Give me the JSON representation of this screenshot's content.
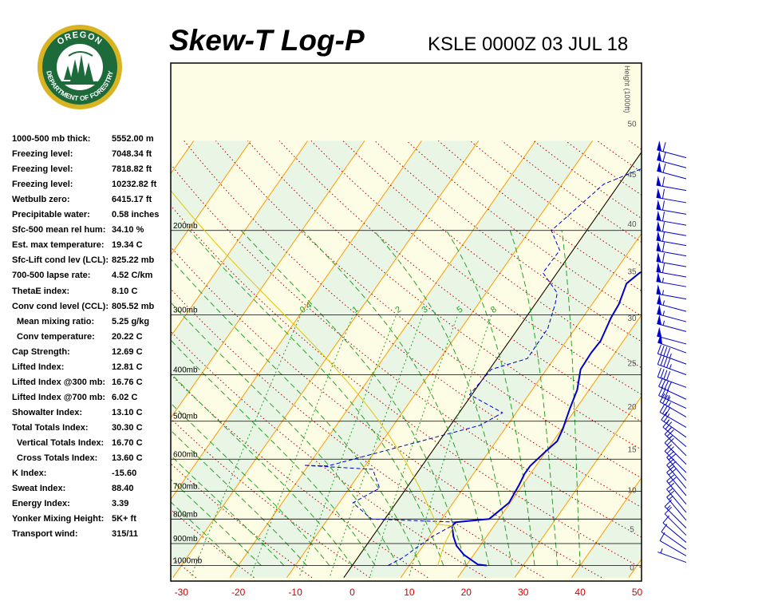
{
  "header": {
    "title": "Skew-T Log-P",
    "station": "KSLE 0000Z 03 JUL 18"
  },
  "logo": {
    "top_text": "OREGON",
    "bottom_text": "DEPARTMENT OF FORESTRY",
    "colors": {
      "ring": "#1d6b3a",
      "outer": "#d8b422",
      "inner": "#ffffff",
      "trees": "#1d6b3a"
    }
  },
  "indices": [
    {
      "label": "1000-500 mb thick:",
      "value": "5552.00 m",
      "indent": false
    },
    {
      "label": "Freezing level:",
      "value": "7048.34 ft",
      "indent": false
    },
    {
      "label": "Freezing level:",
      "value": "7818.82 ft",
      "indent": false
    },
    {
      "label": "Freezing level:",
      "value": "10232.82 ft",
      "indent": false
    },
    {
      "label": "Wetbulb zero:",
      "value": "6415.17 ft",
      "indent": false
    },
    {
      "label": "Precipitable water:",
      "value": "0.58 inches",
      "indent": false
    },
    {
      "label": "Sfc-500 mean rel hum:",
      "value": "34.10 %",
      "indent": false
    },
    {
      "label": "Est. max temperature:",
      "value": "19.34 C",
      "indent": false
    },
    {
      "label": "Sfc-Lift cond lev (LCL):",
      "value": "825.22 mb",
      "indent": false
    },
    {
      "label": "700-500 lapse rate:",
      "value": "4.52 C/km",
      "indent": false
    },
    {
      "label": "ThetaE index:",
      "value": "8.10 C",
      "indent": false
    },
    {
      "label": "Conv cond level (CCL):",
      "value": "805.52 mb",
      "indent": false
    },
    {
      "label": "Mean mixing ratio:",
      "value": "5.25 g/kg",
      "indent": true
    },
    {
      "label": "Conv temperature:",
      "value": "20.22 C",
      "indent": true
    },
    {
      "label": "Cap Strength:",
      "value": "12.69 C",
      "indent": false
    },
    {
      "label": "Lifted Index:",
      "value": "12.81 C",
      "indent": false
    },
    {
      "label": "Lifted Index @300 mb:",
      "value": "16.76 C",
      "indent": false
    },
    {
      "label": "Lifted Index @700 mb:",
      "value": "6.02 C",
      "indent": false
    },
    {
      "label": "Showalter Index:",
      "value": "13.10 C",
      "indent": false
    },
    {
      "label": "Total Totals Index:",
      "value": "30.30 C",
      "indent": false
    },
    {
      "label": "Vertical Totals Index:",
      "value": "16.70 C",
      "indent": true
    },
    {
      "label": "Cross Totals Index:",
      "value": "13.60 C",
      "indent": true
    },
    {
      "label": "K Index:",
      "value": "-15.60",
      "indent": false
    },
    {
      "label": "Sweat Index:",
      "value": "88.40",
      "indent": false
    },
    {
      "label": "Energy Index:",
      "value": "3.39",
      "indent": false
    },
    {
      "label": "Yonker Mixing Height:",
      "value": "5K+ ft",
      "indent": false
    },
    {
      "label": "Transport wind:",
      "value": "315/11",
      "indent": false
    }
  ],
  "chart_data": {
    "type": "line",
    "title": "Skew-T Log-P",
    "subtitle": "KSLE 0000Z 03 JUL 18",
    "xlabel": "",
    "ylabel": "",
    "x_ticks": [
      -30,
      -20,
      -10,
      0,
      10,
      20,
      30,
      40,
      50
    ],
    "xlim": [
      -33,
      50
    ],
    "pressure_levels": [
      200,
      300,
      400,
      500,
      600,
      700,
      800,
      900,
      1000
    ],
    "pressure_labels": [
      "200mb",
      "300mb",
      "400mb",
      "500mb",
      "600mb",
      "700mb",
      "800mb",
      "900mb",
      "1000mb"
    ],
    "plim": [
      1050,
      150
    ],
    "height_axis": {
      "label": "Height (1000ft)",
      "ticks": [
        {
          "text": "0",
          "p": 1011
        },
        {
          "text": "5",
          "p": 842
        },
        {
          "text": "10",
          "p": 697
        },
        {
          "text": "15",
          "p": 573
        },
        {
          "text": "20",
          "p": 467
        },
        {
          "text": "25",
          "p": 379
        },
        {
          "text": "30",
          "p": 305
        },
        {
          "text": "35",
          "p": 244
        },
        {
          "text": "40",
          "p": 194
        },
        {
          "text": "45",
          "p": 153
        },
        {
          "text": "50",
          "p": 120
        }
      ]
    },
    "mixing_ratio_labels": [
      "0.4",
      "1",
      "2",
      "3",
      "5",
      "8"
    ],
    "series": [
      {
        "name": "",
        "kind": "temperature",
        "color": "#0000cc",
        "points": [
          [
            23.6,
            1000
          ],
          [
            21.9,
            995
          ],
          [
            18.3,
            950
          ],
          [
            15.9,
            910
          ],
          [
            14.2,
            870
          ],
          [
            12.7,
            828
          ],
          [
            12.8,
            812
          ],
          [
            18.3,
            800
          ],
          [
            19.8,
            740
          ],
          [
            19.4,
            680
          ],
          [
            19.0,
            645
          ],
          [
            19.0,
            620
          ],
          [
            20.0,
            575
          ],
          [
            20.7,
            550
          ],
          [
            20.2,
            520
          ],
          [
            18.9,
            470
          ],
          [
            17.9,
            430
          ],
          [
            16.0,
            390
          ],
          [
            15.8,
            360
          ],
          [
            16.0,
            340
          ],
          [
            15.0,
            305
          ],
          [
            14.7,
            285
          ],
          [
            13.5,
            258
          ],
          [
            14.5,
            245
          ],
          [
            19.2,
            232
          ],
          [
            21.5,
            220
          ],
          [
            24.0,
            205
          ],
          [
            27.0,
            190
          ],
          [
            30.0,
            170
          ],
          [
            31.5,
            160
          ],
          [
            34.0,
            150
          ],
          [
            36.0,
            141
          ]
        ]
      },
      {
        "name": "",
        "kind": "dewpoint",
        "color": "#0000cc",
        "points": [
          [
            6.3,
            1000
          ],
          [
            8.0,
            960
          ],
          [
            9.0,
            920
          ],
          [
            10.5,
            870
          ],
          [
            12.5,
            828
          ],
          [
            13.1,
            812
          ],
          [
            -2.3,
            800
          ],
          [
            -7.6,
            740
          ],
          [
            -4.7,
            690
          ],
          [
            -8.2,
            630
          ],
          [
            -20.8,
            618
          ],
          [
            -16.5,
            620
          ],
          [
            5.2,
            510
          ],
          [
            7.6,
            480
          ],
          [
            -0.4,
            440
          ],
          [
            0.3,
            390
          ],
          [
            5.3,
            370
          ],
          [
            5.2,
            320
          ],
          [
            3.5,
            285
          ],
          [
            2.5,
            270
          ],
          [
            -2.5,
            245
          ],
          [
            -2.3,
            220
          ],
          [
            -6.2,
            200
          ],
          [
            -2.7,
            160
          ],
          [
            5.0,
            142
          ]
        ]
      }
    ],
    "wind_barbs": {
      "color": "#0000cc",
      "barbs": [
        {
          "p": 985,
          "dir": 290,
          "kt": 5
        },
        {
          "p": 955,
          "dir": 300,
          "kt": 8
        },
        {
          "p": 925,
          "dir": 305,
          "kt": 10
        },
        {
          "p": 895,
          "dir": 310,
          "kt": 10
        },
        {
          "p": 865,
          "dir": 315,
          "kt": 12
        },
        {
          "p": 835,
          "dir": 315,
          "kt": 14
        },
        {
          "p": 805,
          "dir": 320,
          "kt": 15
        },
        {
          "p": 775,
          "dir": 320,
          "kt": 15
        },
        {
          "p": 745,
          "dir": 320,
          "kt": 18
        },
        {
          "p": 715,
          "dir": 320,
          "kt": 20
        },
        {
          "p": 690,
          "dir": 320,
          "kt": 20
        },
        {
          "p": 665,
          "dir": 320,
          "kt": 20
        },
        {
          "p": 640,
          "dir": 315,
          "kt": 20
        },
        {
          "p": 615,
          "dir": 315,
          "kt": 20
        },
        {
          "p": 590,
          "dir": 315,
          "kt": 25
        },
        {
          "p": 565,
          "dir": 310,
          "kt": 25
        },
        {
          "p": 540,
          "dir": 305,
          "kt": 25
        },
        {
          "p": 515,
          "dir": 300,
          "kt": 30
        },
        {
          "p": 490,
          "dir": 300,
          "kt": 35
        },
        {
          "p": 470,
          "dir": 295,
          "kt": 35
        },
        {
          "p": 450,
          "dir": 295,
          "kt": 40
        },
        {
          "p": 425,
          "dir": 290,
          "kt": 40
        },
        {
          "p": 400,
          "dir": 290,
          "kt": 45
        },
        {
          "p": 380,
          "dir": 290,
          "kt": 45
        },
        {
          "p": 360,
          "dir": 290,
          "kt": 50
        },
        {
          "p": 345,
          "dir": 285,
          "kt": 50
        },
        {
          "p": 325,
          "dir": 285,
          "kt": 55
        },
        {
          "p": 310,
          "dir": 285,
          "kt": 55
        },
        {
          "p": 295,
          "dir": 285,
          "kt": 55
        },
        {
          "p": 278,
          "dir": 280,
          "kt": 55
        },
        {
          "p": 262,
          "dir": 280,
          "kt": 55
        },
        {
          "p": 250,
          "dir": 280,
          "kt": 60
        },
        {
          "p": 238,
          "dir": 280,
          "kt": 60
        },
        {
          "p": 226,
          "dir": 280,
          "kt": 60
        },
        {
          "p": 215,
          "dir": 280,
          "kt": 60
        },
        {
          "p": 205,
          "dir": 280,
          "kt": 60
        },
        {
          "p": 195,
          "dir": 280,
          "kt": 60
        },
        {
          "p": 185,
          "dir": 280,
          "kt": 60
        },
        {
          "p": 175,
          "dir": 280,
          "kt": 60
        },
        {
          "p": 165,
          "dir": 280,
          "kt": 60
        },
        {
          "p": 156,
          "dir": 285,
          "kt": 60
        },
        {
          "p": 148,
          "dir": 285,
          "kt": 60
        },
        {
          "p": 141,
          "dir": 285,
          "kt": 60
        }
      ]
    },
    "grid": true,
    "legend": "none",
    "colors": {
      "background": "#fdfde6",
      "band": "#e9f6e6",
      "isotherm": "#ff9a00",
      "dry_adiabat": "#b30000",
      "moist_adiabat": "#2aa02a",
      "mixing_ratio": "#2aa02a",
      "isobar": "#000000",
      "axis_text": "#cc0000",
      "height_text": "#555555"
    }
  }
}
